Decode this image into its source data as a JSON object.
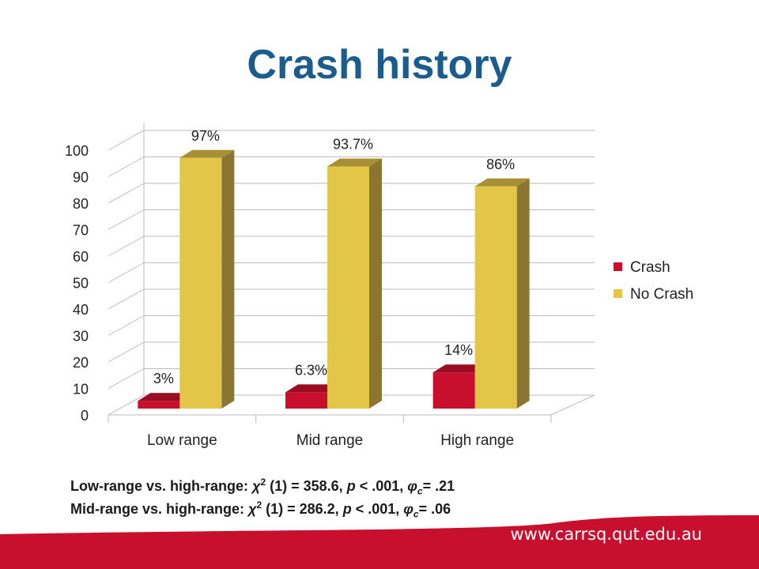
{
  "title": "Crash history",
  "chart_data": {
    "type": "bar",
    "categories": [
      "Low range",
      "Mid range",
      "High range"
    ],
    "series": [
      {
        "name": "Crash",
        "values": [
          3,
          6.3,
          14
        ],
        "labels": [
          "3%",
          "6.3%",
          "14%"
        ],
        "color": "#c8102e"
      },
      {
        "name": "No Crash",
        "values": [
          97,
          93.7,
          86
        ],
        "labels": [
          "97%",
          "93.7%",
          "86%"
        ],
        "color": "#e3c548"
      }
    ],
    "ylim": [
      0,
      100
    ],
    "yticks": [
      "0",
      "10",
      "20",
      "30",
      "40",
      "50",
      "60",
      "70",
      "80",
      "90",
      "100"
    ],
    "grid": true,
    "legend": "right"
  },
  "stats": {
    "line1": "Low-range vs. high-range: χ2 (1) = 358.6, p < .001, φc= .21",
    "line2": "Mid-range vs. high-range: χ2 (1) = 286.2, p < .001, φc= .06"
  },
  "legend": {
    "crash": "Crash",
    "no_crash": "No Crash"
  },
  "footer": {
    "url": "www.carrsq.qut.edu.au",
    "bar_color": "#c8102e"
  }
}
